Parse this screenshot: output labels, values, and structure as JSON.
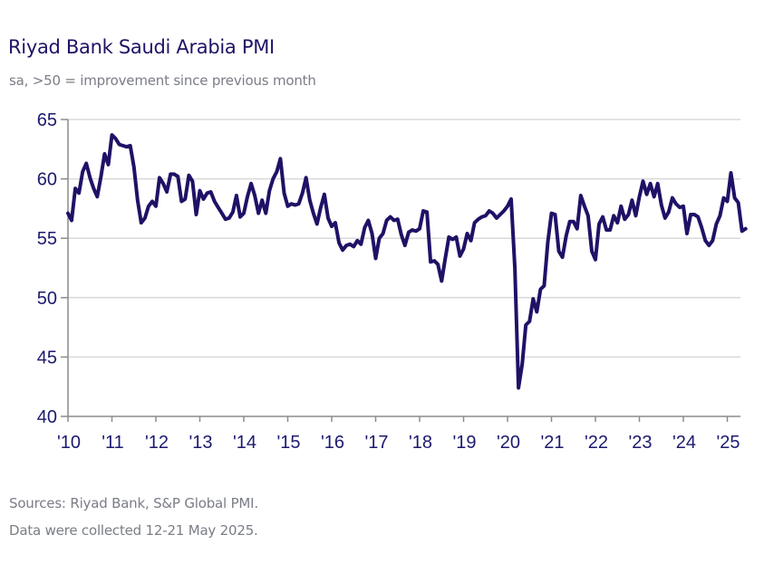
{
  "header": {
    "title": "Riyad Bank Saudi Arabia PMI",
    "subtitle": "sa, >50 = improvement since previous month"
  },
  "footer": {
    "sources": "Sources: Riyad Bank, S&P Global PMI.",
    "collected": "Data were collected 12-21 May 2025."
  },
  "colors": {
    "line": "#1f1266",
    "gridline": "#d9d9d9",
    "axis": "#8c8c8c",
    "tick_text": "#1c1a6e"
  },
  "chart_data": {
    "type": "line",
    "title": "Riyad Bank Saudi Arabia PMI",
    "subtitle": "sa, >50 = improvement since previous month",
    "xlabel": "",
    "ylabel": "",
    "ylim": [
      40,
      65
    ],
    "yticks": [
      40,
      45,
      50,
      55,
      60,
      65
    ],
    "xticks": [
      "'10",
      "'11",
      "'12",
      "'13",
      "'14",
      "'15",
      "'16",
      "'17",
      "'18",
      "'19",
      "'20",
      "'21",
      "'22",
      "'23",
      "'24",
      "'25"
    ],
    "x_range": [
      2010.0,
      2025.35
    ],
    "grid": "horizontal",
    "legend": "none",
    "series": [
      {
        "name": "Saudi Arabia PMI",
        "x_start": "2010-01",
        "frequency": "monthly",
        "values": [
          57.1,
          56.5,
          59.2,
          58.8,
          60.6,
          61.3,
          60.1,
          59.2,
          58.5,
          60.2,
          62.1,
          61.2,
          63.7,
          63.4,
          62.9,
          62.8,
          62.7,
          62.8,
          61.0,
          58.2,
          56.3,
          56.7,
          57.7,
          58.1,
          57.7,
          60.1,
          59.6,
          58.9,
          60.4,
          60.4,
          60.2,
          58.1,
          58.3,
          60.3,
          59.8,
          57.0,
          59.0,
          58.3,
          58.8,
          58.9,
          58.1,
          57.6,
          57.1,
          56.6,
          56.7,
          57.2,
          58.6,
          56.8,
          57.1,
          58.5,
          59.6,
          58.6,
          57.1,
          58.2,
          57.1,
          59.0,
          60.0,
          60.6,
          61.7,
          58.8,
          57.7,
          57.9,
          57.8,
          57.9,
          58.8,
          60.1,
          58.2,
          57.1,
          56.2,
          57.6,
          58.7,
          56.7,
          56.0,
          56.3,
          54.6,
          54.0,
          54.4,
          54.5,
          54.3,
          54.8,
          54.5,
          55.9,
          56.5,
          55.4,
          53.3,
          55.0,
          55.4,
          56.5,
          56.8,
          56.5,
          56.6,
          55.3,
          54.4,
          55.5,
          55.7,
          55.6,
          55.8,
          57.3,
          57.2,
          53.0,
          53.1,
          52.8,
          51.4,
          53.3,
          55.1,
          54.9,
          55.1,
          53.5,
          54.1,
          55.4,
          54.8,
          56.3,
          56.6,
          56.8,
          56.9,
          57.3,
          57.1,
          56.7,
          57.0,
          57.3,
          57.7,
          58.3,
          52.5,
          42.4,
          44.4,
          47.7,
          48.0,
          49.9,
          48.8,
          50.7,
          51.0,
          54.7,
          57.1,
          57.0,
          53.9,
          53.4,
          55.2,
          56.4,
          56.4,
          55.8,
          58.6,
          57.7,
          56.9,
          53.9,
          53.2,
          56.2,
          56.8,
          55.7,
          55.7,
          56.9,
          56.3,
          57.7,
          56.6,
          57.0,
          58.2,
          56.9,
          58.5,
          59.8,
          58.7,
          59.6,
          58.5,
          59.6,
          57.8,
          56.7,
          57.2,
          58.4,
          57.9,
          57.6,
          57.7,
          55.4,
          57.0,
          57.0,
          56.8,
          55.9,
          54.8,
          54.4,
          54.8,
          56.2,
          56.9,
          58.4,
          58.1,
          60.5,
          58.4,
          58.0,
          55.6,
          55.8
        ]
      }
    ]
  }
}
